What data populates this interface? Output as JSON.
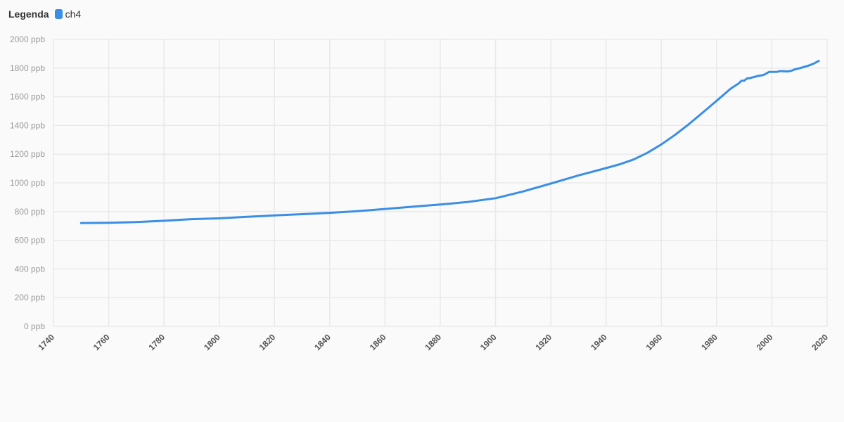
{
  "legend": {
    "title": "Legenda",
    "items": [
      {
        "label": "ch4",
        "color": "#3a8ee6"
      }
    ]
  },
  "chart_data": {
    "type": "line",
    "title": "",
    "xlabel": "",
    "ylabel": "",
    "xlim": [
      1740,
      2020
    ],
    "ylim": [
      0,
      2000
    ],
    "y_unit": "ppb",
    "grid": true,
    "legend_position": "top-left",
    "x_ticks": [
      1740,
      1760,
      1780,
      1800,
      1820,
      1840,
      1860,
      1880,
      1900,
      1920,
      1940,
      1960,
      1980,
      2000,
      2020
    ],
    "y_ticks": [
      0,
      200,
      400,
      600,
      800,
      1000,
      1200,
      1400,
      1600,
      1800,
      2000
    ],
    "y_tick_labels": [
      "0 ppb",
      "200 ppb",
      "400 ppb",
      "600 ppb",
      "800 ppb",
      "1000 ppb",
      "1200 ppb",
      "1400 ppb",
      "1600 ppb",
      "1800 ppb",
      "2000 ppb"
    ],
    "series": [
      {
        "name": "ch4",
        "color": "#3a8ee6",
        "x": [
          1750,
          1760,
          1770,
          1780,
          1790,
          1800,
          1810,
          1820,
          1830,
          1840,
          1850,
          1860,
          1870,
          1880,
          1890,
          1900,
          1910,
          1920,
          1930,
          1940,
          1945,
          1950,
          1955,
          1960,
          1965,
          1970,
          1975,
          1980,
          1985,
          1986,
          1988,
          1989,
          1990,
          1991,
          1992,
          1995,
          1997,
          1999,
          2000,
          2002,
          2003,
          2005,
          2006,
          2007,
          2008,
          2010,
          2013,
          2015,
          2017
        ],
        "y": [
          720,
          722,
          727,
          736,
          747,
          753,
          763,
          773,
          782,
          791,
          803,
          818,
          834,
          849,
          867,
          893,
          940,
          995,
          1052,
          1103,
          1130,
          1163,
          1210,
          1268,
          1335,
          1410,
          1490,
          1572,
          1655,
          1668,
          1693,
          1712,
          1712,
          1728,
          1730,
          1745,
          1752,
          1773,
          1773,
          1774,
          1779,
          1777,
          1777,
          1781,
          1789,
          1799,
          1815,
          1830,
          1850
        ]
      }
    ]
  }
}
